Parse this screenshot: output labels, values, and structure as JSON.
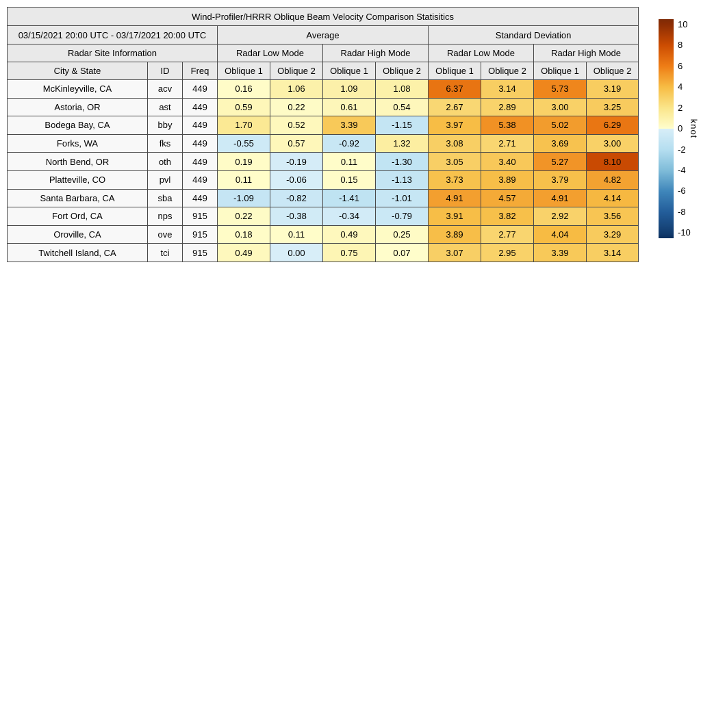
{
  "chart_data": {
    "type": "heatmap",
    "title": "Wind-Profiler/HRRR Oblique Beam Velocity Comparison Statisitics",
    "date_range": "03/15/2021 20:00 UTC - 03/17/2021 20:00 UTC",
    "group_headers": {
      "average": "Average",
      "std_dev": "Standard Deviation"
    },
    "site_info_header": "Radar Site Information",
    "mode_headers": [
      "Radar Low Mode",
      "Radar High Mode",
      "Radar Low Mode",
      "Radar High Mode"
    ],
    "columns": [
      "City & State",
      "ID",
      "Freq",
      "Oblique 1",
      "Oblique 2",
      "Oblique 1",
      "Oblique 2",
      "Oblique 1",
      "Oblique 2",
      "Oblique 1",
      "Oblique 2"
    ],
    "rows": [
      {
        "city": "McKinleyville, CA",
        "id": "acv",
        "freq": "449",
        "values": [
          "0.16",
          "1.06",
          "1.09",
          "1.08",
          "6.37",
          "3.14",
          "5.73",
          "3.19"
        ]
      },
      {
        "city": "Astoria, OR",
        "id": "ast",
        "freq": "449",
        "values": [
          "0.59",
          "0.22",
          "0.61",
          "0.54",
          "2.67",
          "2.89",
          "3.00",
          "3.25"
        ]
      },
      {
        "city": "Bodega Bay, CA",
        "id": "bby",
        "freq": "449",
        "values": [
          "1.70",
          "0.52",
          "3.39",
          "-1.15",
          "3.97",
          "5.38",
          "5.02",
          "6.29"
        ]
      },
      {
        "city": "Forks, WA",
        "id": "fks",
        "freq": "449",
        "values": [
          "-0.55",
          "0.57",
          "-0.92",
          "1.32",
          "3.08",
          "2.71",
          "3.69",
          "3.00"
        ]
      },
      {
        "city": "North Bend, OR",
        "id": "oth",
        "freq": "449",
        "values": [
          "0.19",
          "-0.19",
          "0.11",
          "-1.30",
          "3.05",
          "3.40",
          "5.27",
          "8.10"
        ]
      },
      {
        "city": "Platteville, CO",
        "id": "pvl",
        "freq": "449",
        "values": [
          "0.11",
          "-0.06",
          "0.15",
          "-1.13",
          "3.73",
          "3.89",
          "3.79",
          "4.82"
        ]
      },
      {
        "city": "Santa Barbara, CA",
        "id": "sba",
        "freq": "449",
        "values": [
          "-1.09",
          "-0.82",
          "-1.41",
          "-1.01",
          "4.91",
          "4.57",
          "4.91",
          "4.14"
        ]
      },
      {
        "city": "Fort Ord, CA",
        "id": "nps",
        "freq": "915",
        "values": [
          "0.22",
          "-0.38",
          "-0.34",
          "-0.79",
          "3.91",
          "3.82",
          "2.92",
          "3.56"
        ]
      },
      {
        "city": "Oroville, CA",
        "id": "ove",
        "freq": "915",
        "values": [
          "0.18",
          "0.11",
          "0.49",
          "0.25",
          "3.89",
          "2.77",
          "4.04",
          "3.29"
        ]
      },
      {
        "city": "Twitchell Island, CA",
        "id": "tci",
        "freq": "915",
        "values": [
          "0.49",
          "0.00",
          "0.75",
          "0.07",
          "3.07",
          "2.95",
          "3.39",
          "3.14"
        ]
      }
    ],
    "colorbar": {
      "label": "knot",
      "ticks": [
        10,
        8,
        6,
        4,
        2,
        0,
        -2,
        -4,
        -6,
        -8,
        -10
      ],
      "vmin": -10.5,
      "vmax": 10.5,
      "stops": [
        [
          10.5,
          "#7e2a06"
        ],
        [
          10,
          "#8c2d04"
        ],
        [
          8,
          "#cc4c02"
        ],
        [
          6,
          "#ee7d16"
        ],
        [
          4,
          "#f7bc44"
        ],
        [
          2,
          "#fae58a"
        ],
        [
          0.001,
          "#fffecd"
        ],
        [
          -0.001,
          "#d8eef8"
        ],
        [
          -2,
          "#b5def0"
        ],
        [
          -4,
          "#7fbcd9"
        ],
        [
          -6,
          "#3f86ba"
        ],
        [
          -8,
          "#235d9a"
        ],
        [
          -10,
          "#123c6e"
        ],
        [
          -10.5,
          "#0b2f5e"
        ]
      ]
    },
    "colors": {
      "header_bg": "#e9e9e9",
      "row_label_bg": "#f8f8f8",
      "border": "#4a4a4a",
      "text": "#000000"
    }
  }
}
